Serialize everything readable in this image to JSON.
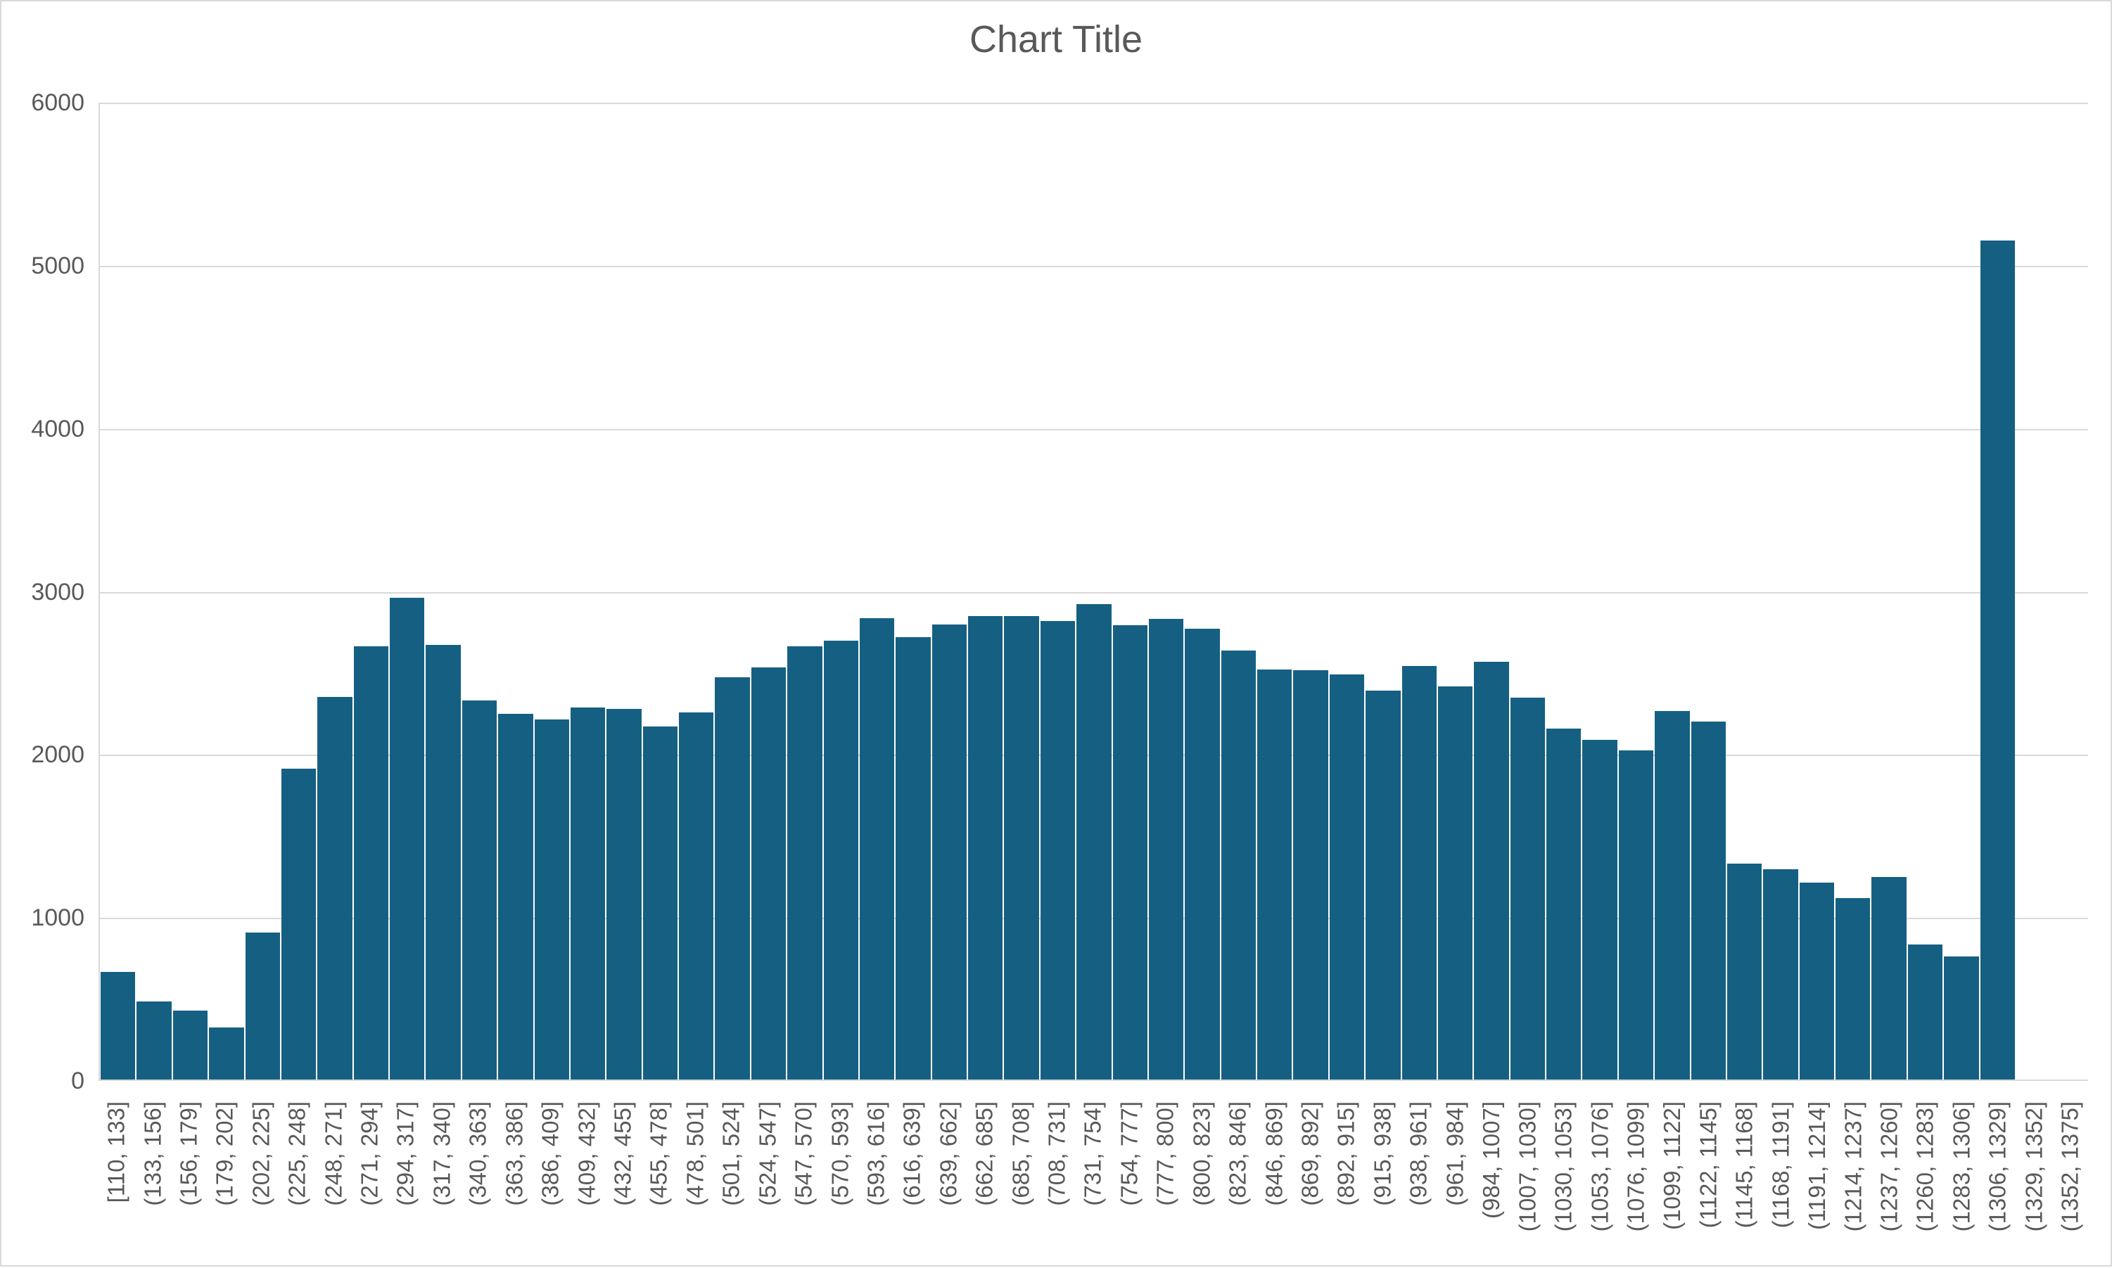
{
  "chart": {
    "colors": {
      "bar_fill": "#156082",
      "gridline": "#D9D9D9",
      "axis_line": "#D9D9D9",
      "text": "#595959",
      "frame_border": "#D9D9D9",
      "background": "#FFFFFF"
    }
  },
  "chart_data": {
    "type": "bar",
    "subtype": "histogram",
    "title": "Chart Title",
    "xlabel": "",
    "ylabel": "",
    "ylim": [
      0,
      6000
    ],
    "yticks": [
      0,
      1000,
      2000,
      3000,
      4000,
      5000,
      6000
    ],
    "grid": true,
    "legend": false,
    "gap_width": "none (bins touch, thin white separator)",
    "categories": [
      "[110, 133]",
      "(133, 156]",
      "(156, 179]",
      "(179, 202]",
      "(202, 225]",
      "(225, 248]",
      "(248, 271]",
      "(271, 294]",
      "(294, 317]",
      "(317, 340]",
      "(340, 363]",
      "(363, 386]",
      "(386, 409]",
      "(409, 432]",
      "(432, 455]",
      "(455, 478]",
      "(478, 501]",
      "(501, 524]",
      "(524, 547]",
      "(547, 570]",
      "(570, 593]",
      "(593, 616]",
      "(616, 639]",
      "(639, 662]",
      "(662, 685]",
      "(685, 708]",
      "(708, 731]",
      "(731, 754]",
      "(754, 777]",
      "(777, 800]",
      "(800, 823]",
      "(823, 846]",
      "(846, 869]",
      "(869, 892]",
      "(892, 915]",
      "(915, 938]",
      "(938, 961]",
      "(961, 984]",
      "(984, 1007]",
      "(1007, 1030]",
      "(1030, 1053]",
      "(1053, 1076]",
      "(1076, 1099]",
      "(1099, 1122]",
      "(1122, 1145]",
      "(1145, 1168]",
      "(1168, 1191]",
      "(1191, 1214]",
      "(1214, 1237]",
      "(1237, 1260]",
      "(1260, 1283]",
      "(1283, 1306]",
      "(1306, 1329]",
      "(1329, 1352]",
      "(1352, 1375]"
    ],
    "values": [
      660,
      480,
      425,
      320,
      905,
      1910,
      2350,
      2660,
      2960,
      2670,
      2330,
      2245,
      2210,
      2285,
      2275,
      2170,
      2255,
      2470,
      2530,
      2660,
      2695,
      2835,
      2715,
      2795,
      2845,
      2845,
      2815,
      2920,
      2790,
      2830,
      2770,
      2635,
      2520,
      2515,
      2490,
      2390,
      2540,
      2415,
      2565,
      2345,
      2155,
      2085,
      2020,
      2265,
      2200,
      1325,
      1290,
      1210,
      1115,
      1245,
      830,
      755,
      5155,
      0,
      0
    ]
  }
}
